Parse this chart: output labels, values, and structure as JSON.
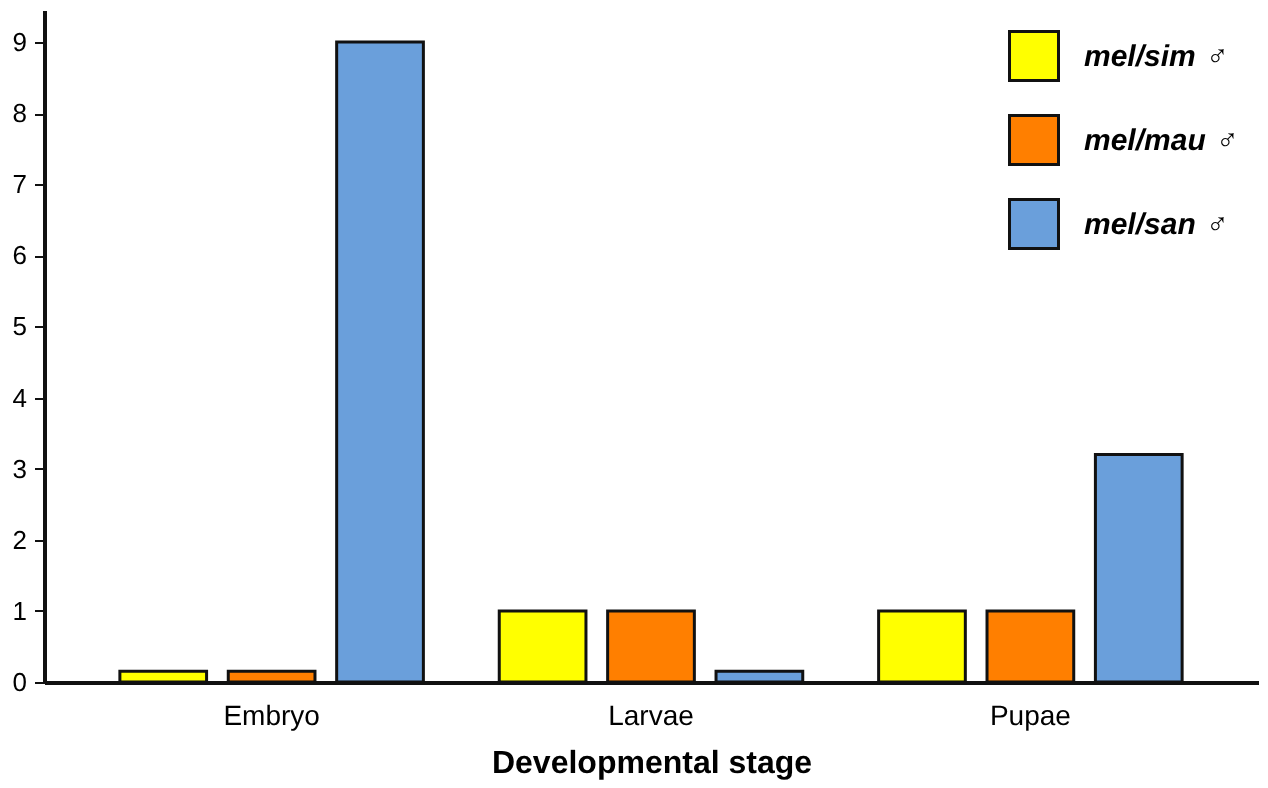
{
  "chart_data": {
    "type": "bar",
    "xlabel": "Developmental stage",
    "categories": [
      "Embryo",
      "Larvae",
      "Pupae"
    ],
    "series": [
      {
        "name": "mel/sim ♂",
        "color": "#ffff00",
        "values": [
          0.15,
          1,
          1
        ]
      },
      {
        "name": "mel/mau ♂",
        "color": "#ff7f00",
        "values": [
          0.15,
          1,
          1
        ]
      },
      {
        "name": "mel/san ♂",
        "color": "#6a9fdb",
        "values": [
          9,
          0.15,
          3.2
        ]
      }
    ],
    "ylim": [
      0,
      9.45
    ],
    "yticks": [
      0,
      1,
      2,
      3,
      4,
      5,
      6,
      7,
      8,
      9
    ],
    "grid": false,
    "legend": "top right"
  }
}
